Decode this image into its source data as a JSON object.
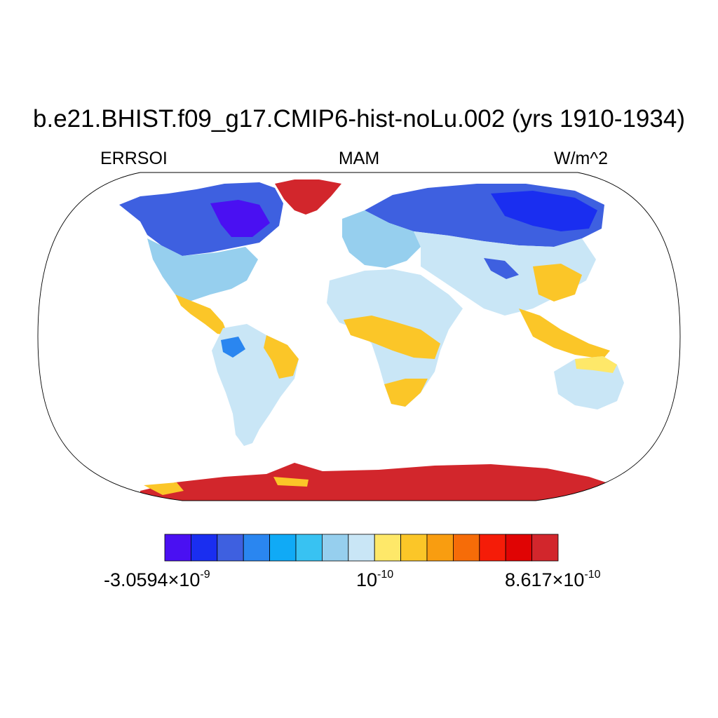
{
  "title": "b.e21.BHIST.f09_g17.CMIP6-hist-noLu.002 (yrs 1910-1934)",
  "subtitle_left": "ERRSOI",
  "subtitle_center": "MAM",
  "subtitle_right": "W/m^2",
  "colorbar": {
    "colors": [
      "#4a10f2",
      "#1a2ef0",
      "#3e60e0",
      "#2a86f0",
      "#10aaf6",
      "#38c2f2",
      "#96cfee",
      "#c9e6f6",
      "#fee869",
      "#fbc628",
      "#f99d10",
      "#f66c08",
      "#f51c08",
      "#e00404",
      "#d2262c"
    ],
    "label_left_mantissa": "-3.0594",
    "label_left_exp": "-9",
    "label_mid_base": "10",
    "label_mid_exp": "-10",
    "label_right_mantissa": "8.617",
    "label_right_exp": "-10",
    "times": "×",
    "ten": "10"
  },
  "map": {
    "projection": "robinson",
    "variable": "ERRSOI",
    "season": "MAM",
    "units": "W/m^2"
  }
}
